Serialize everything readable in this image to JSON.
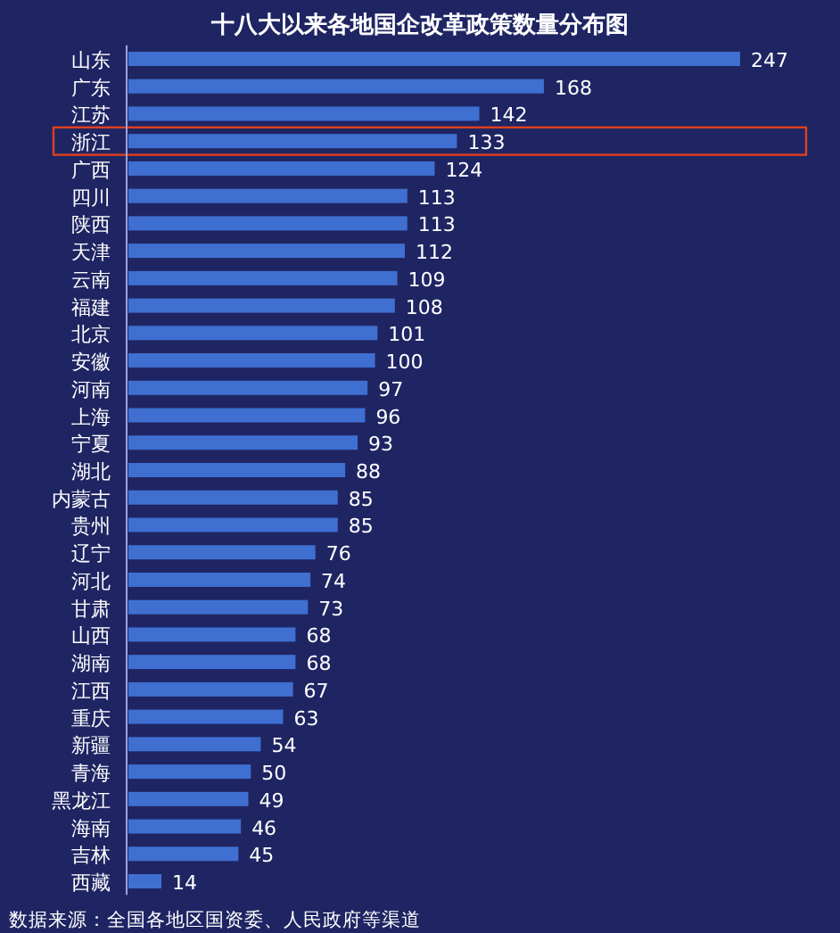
{
  "chart_data": {
    "type": "bar",
    "orientation": "horizontal",
    "title": "十八大以来各地国企改革政策数量分布图",
    "categories": [
      "山东",
      "广东",
      "江苏",
      "浙江",
      "广西",
      "四川",
      "陕西",
      "天津",
      "云南",
      "福建",
      "北京",
      "安徽",
      "河南",
      "上海",
      "宁夏",
      "湖北",
      "内蒙古",
      "贵州",
      "辽宁",
      "河北",
      "甘肃",
      "山西",
      "湖南",
      "江西",
      "重庆",
      "新疆",
      "青海",
      "黑龙江",
      "海南",
      "吉林",
      "西藏"
    ],
    "values": [
      247,
      168,
      142,
      133,
      124,
      113,
      113,
      112,
      109,
      108,
      101,
      100,
      97,
      96,
      93,
      88,
      85,
      85,
      76,
      74,
      73,
      68,
      68,
      67,
      63,
      54,
      50,
      49,
      46,
      45,
      14
    ],
    "color": "#3f6fd0",
    "data_labels": true,
    "annotations": [
      "数据来源：全国各地区国资委、人民政府等渠道"
    ]
  }
}
